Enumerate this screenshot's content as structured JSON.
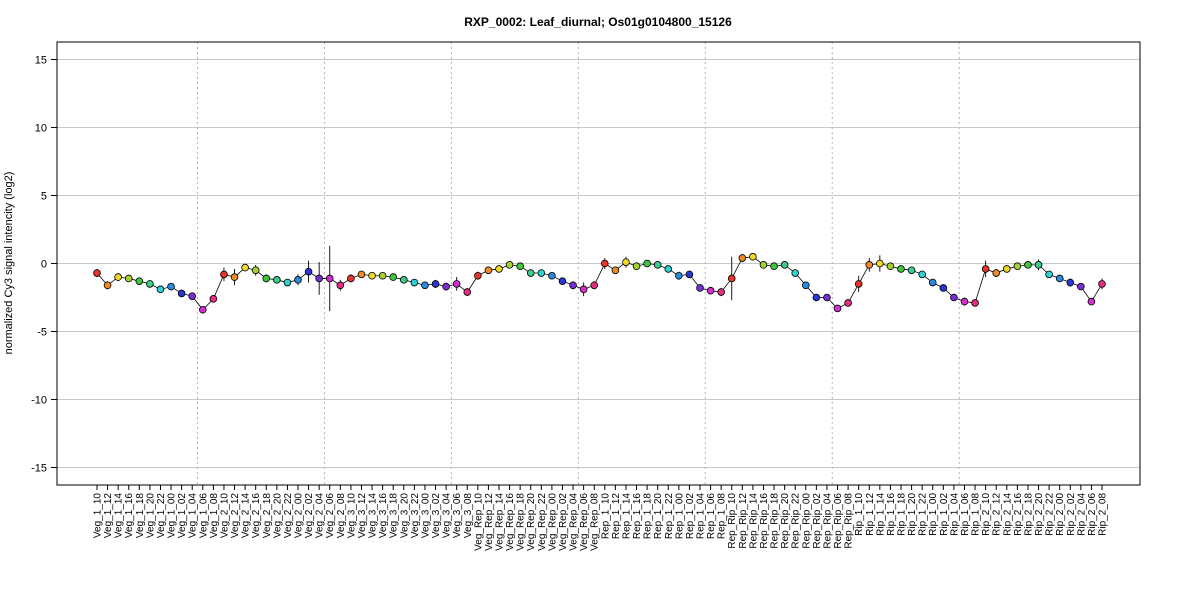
{
  "chart_data": {
    "type": "line",
    "title": "RXP_0002: Leaf_diurnal; Os01g0104800_15126",
    "xlabel": "",
    "ylabel": "normalized Cy3 signal intencity (log2)",
    "ylim": [
      -16,
      16
    ],
    "yticks": [
      -15,
      -10,
      -5,
      0,
      5,
      10,
      15
    ],
    "grid": true,
    "group_separators_after": [
      9,
      21,
      33,
      45,
      57,
      69,
      81
    ],
    "categories": [
      "Veg_1_10",
      "Veg_1_12",
      "Veg_1_14",
      "Veg_1_16",
      "Veg_1_18",
      "Veg_1_20",
      "Veg_1_22",
      "Veg_1_00",
      "Veg_1_02",
      "Veg_1_04",
      "Veg_1_06",
      "Veg_1_08",
      "Veg_2_10",
      "Veg_2_12",
      "Veg_2_14",
      "Veg_2_16",
      "Veg_2_18",
      "Veg_2_20",
      "Veg_2_22",
      "Veg_2_00",
      "Veg_2_02",
      "Veg_2_04",
      "Veg_2_06",
      "Veg_2_08",
      "Veg_3_10",
      "Veg_3_12",
      "Veg_3_14",
      "Veg_3_16",
      "Veg_3_18",
      "Veg_3_20",
      "Veg_3_22",
      "Veg_3_00",
      "Veg_3_02",
      "Veg_3_04",
      "Veg_3_06",
      "Veg_3_08",
      "Veg_Rep_10",
      "Veg_Rep_12",
      "Veg_Rep_14",
      "Veg_Rep_16",
      "Veg_Rep_18",
      "Veg_Rep_20",
      "Veg_Rep_22",
      "Veg_Rep_00",
      "Veg_Rep_02",
      "Veg_Rep_04",
      "Veg_Rep_06",
      "Veg_Rep_08",
      "Rep_1_10",
      "Rep_1_12",
      "Rep_1_14",
      "Rep_1_16",
      "Rep_1_18",
      "Rep_1_20",
      "Rep_1_22",
      "Rep_1_00",
      "Rep_1_02",
      "Rep_1_04",
      "Rep_1_06",
      "Rep_1_08",
      "Rep_Rip_10",
      "Rep_Rip_12",
      "Rep_Rip_14",
      "Rep_Rip_16",
      "Rep_Rip_18",
      "Rep_Rip_20",
      "Rep_Rip_22",
      "Rep_Rip_00",
      "Rep_Rip_02",
      "Rep_Rip_04",
      "Rep_Rip_06",
      "Rep_Rip_08",
      "Rip_1_10",
      "Rip_1_12",
      "Rip_1_14",
      "Rip_1_16",
      "Rip_1_18",
      "Rip_1_20",
      "Rip_1_22",
      "Rip_1_00",
      "Rip_1_02",
      "Rip_1_04",
      "Rip_1_06",
      "Rip_1_08",
      "Rip_2_10",
      "Rip_2_12",
      "Rip_2_14",
      "Rip_2_16",
      "Rip_2_18",
      "Rip_2_20",
      "Rip_2_22",
      "Rip_2_00",
      "Rip_2_02",
      "Rip_2_04",
      "Rip_2_06",
      "Rip_2_08"
    ],
    "values": [
      -0.7,
      -1.6,
      -1.0,
      -1.1,
      -1.3,
      -1.5,
      -1.9,
      -1.7,
      -2.2,
      -2.4,
      -3.4,
      -2.6,
      -0.8,
      -1.0,
      -0.3,
      -0.5,
      -1.1,
      -1.2,
      -1.4,
      -1.2,
      -0.6,
      -1.1,
      -1.1,
      -1.6,
      -1.1,
      -0.8,
      -0.9,
      -0.9,
      -1.0,
      -1.2,
      -1.4,
      -1.6,
      -1.5,
      -1.7,
      -1.5,
      -2.1,
      -0.9,
      -0.5,
      -0.4,
      -0.1,
      -0.2,
      -0.7,
      -0.7,
      -0.9,
      -1.3,
      -1.6,
      -1.9,
      -1.6,
      0.0,
      -0.5,
      0.1,
      -0.2,
      0.0,
      -0.1,
      -0.4,
      -0.9,
      -0.8,
      -1.8,
      -2.0,
      -2.1,
      -1.1,
      0.4,
      0.5,
      -0.1,
      -0.2,
      -0.1,
      -0.7,
      -1.6,
      -2.5,
      -2.5,
      -3.3,
      -2.9,
      -1.5,
      -0.1,
      0.0,
      -0.2,
      -0.4,
      -0.5,
      -0.8,
      -1.4,
      -1.8,
      -2.5,
      -2.8,
      -2.9,
      -0.4,
      -0.7,
      -0.4,
      -0.2,
      -0.1,
      -0.1,
      -0.8,
      -1.1,
      -1.4,
      -1.7,
      -2.8,
      -1.5
    ],
    "errors": [
      0.3,
      0.3,
      0.3,
      0.2,
      0.2,
      0.2,
      0.2,
      0.2,
      0.2,
      0.2,
      0.2,
      0.2,
      0.5,
      0.6,
      0.2,
      0.4,
      0.3,
      0.2,
      0.2,
      0.4,
      0.8,
      1.2,
      2.4,
      0.4,
      0.3,
      0.2,
      0.2,
      0.2,
      0.2,
      0.2,
      0.2,
      0.2,
      0.3,
      0.3,
      0.5,
      0.3,
      0.3,
      0.2,
      0.2,
      0.2,
      0.2,
      0.2,
      0.2,
      0.2,
      0.2,
      0.3,
      0.5,
      0.3,
      0.4,
      0.2,
      0.4,
      0.2,
      0.2,
      0.2,
      0.2,
      0.3,
      0.2,
      0.2,
      0.2,
      0.3,
      1.6,
      0.3,
      0.2,
      0.2,
      0.2,
      0.2,
      0.2,
      0.2,
      0.2,
      0.2,
      0.2,
      0.2,
      0.6,
      0.5,
      0.6,
      0.2,
      0.2,
      0.2,
      0.2,
      0.2,
      0.2,
      0.2,
      0.3,
      0.2,
      0.6,
      0.3,
      0.2,
      0.2,
      0.2,
      0.4,
      0.2,
      0.2,
      0.3,
      0.2,
      0.2,
      0.4
    ],
    "time_colors": {
      "10": "#e8342a",
      "12": "#f08a24",
      "14": "#f0d828",
      "16": "#a4d232",
      "18": "#3cc83a",
      "20": "#3ccc8a",
      "22": "#2ed2d2",
      "00": "#2a8ae2",
      "02": "#2a36d6",
      "04": "#7a2ed6",
      "06": "#d42ed2",
      "08": "#e42e84"
    }
  }
}
